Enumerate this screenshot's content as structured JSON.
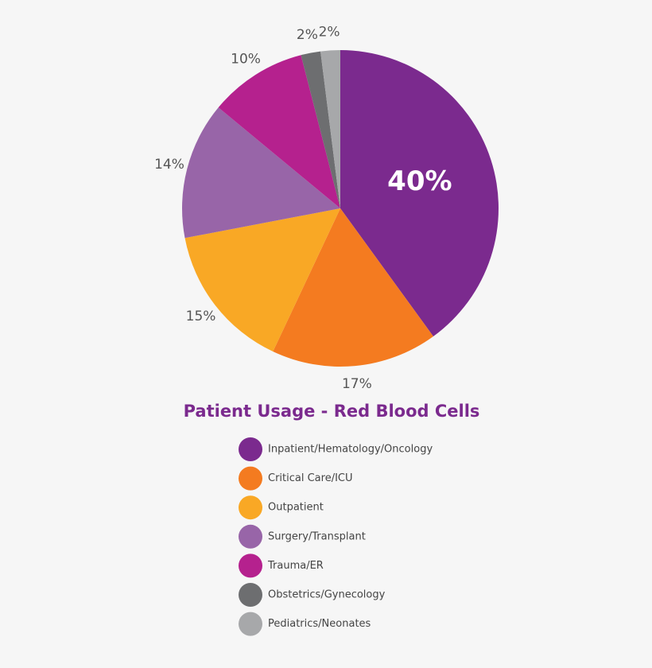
{
  "chart_data": {
    "type": "pie",
    "title": "Patient Usage - Red Blood Cells",
    "categories": [
      "Inpatient/Hematology/Oncology",
      "Critical Care/ICU",
      "Outpatient",
      "Surgery/Transplant",
      "Trauma/ER",
      "Obstetrics/Gynecology",
      "Pediatrics/Neonates"
    ],
    "values": [
      40,
      17,
      15,
      14,
      10,
      2,
      2
    ],
    "value_labels": [
      "40%",
      "17%",
      "15%",
      "14%",
      "10%",
      "2%",
      "2%"
    ],
    "colors": [
      "#7b2a8e",
      "#f47b20",
      "#f9a825",
      "#9865a8",
      "#b5218e",
      "#6d6e70",
      "#a7a8aa"
    ]
  }
}
